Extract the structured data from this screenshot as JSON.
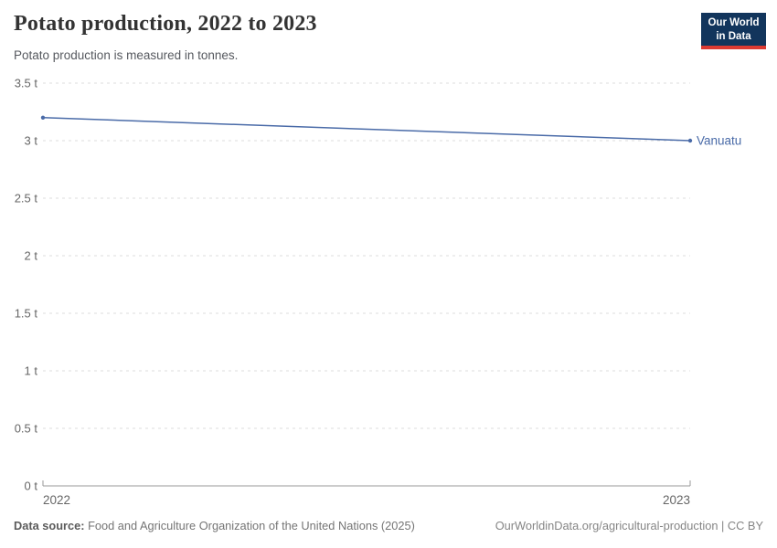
{
  "header": {
    "title": "Potato production, 2022 to 2023",
    "subtitle": "Potato production is measured in tonnes.",
    "logo": {
      "line1": "Our World",
      "line2": "in Data",
      "bg_color": "#12355c",
      "accent_color": "#dc3a32"
    }
  },
  "chart_data": {
    "type": "line",
    "title": "Potato production, 2022 to 2023",
    "x": [
      2022,
      2023
    ],
    "series": [
      {
        "name": "Vanuatu",
        "values": [
          3.2,
          3.0
        ],
        "color": "#4a6ba8"
      }
    ],
    "x_tick_labels": [
      "2022",
      "2023"
    ],
    "y_ticks": [
      {
        "value": 0,
        "label": "0 t"
      },
      {
        "value": 0.5,
        "label": "0.5 t"
      },
      {
        "value": 1,
        "label": "1 t"
      },
      {
        "value": 1.5,
        "label": "1.5 t"
      },
      {
        "value": 2,
        "label": "2 t"
      },
      {
        "value": 2.5,
        "label": "2.5 t"
      },
      {
        "value": 3,
        "label": "3 t"
      },
      {
        "value": 3.5,
        "label": "3.5 t"
      }
    ],
    "ylim": [
      0,
      3.5
    ],
    "unit": "t",
    "grid": "horizontal-dashed",
    "legend_position": "end-of-line-label",
    "colors": {
      "gridline": "#dcdcdc",
      "axis_line": "#999999",
      "tick_label": "#666666",
      "entity_label": "#4a6ba8"
    }
  },
  "footer": {
    "source_label": "Data source:",
    "source_text": " Food and Agriculture Organization of the United Nations (2025)",
    "link_text": "OurWorldinData.org/agricultural-production | CC BY"
  }
}
